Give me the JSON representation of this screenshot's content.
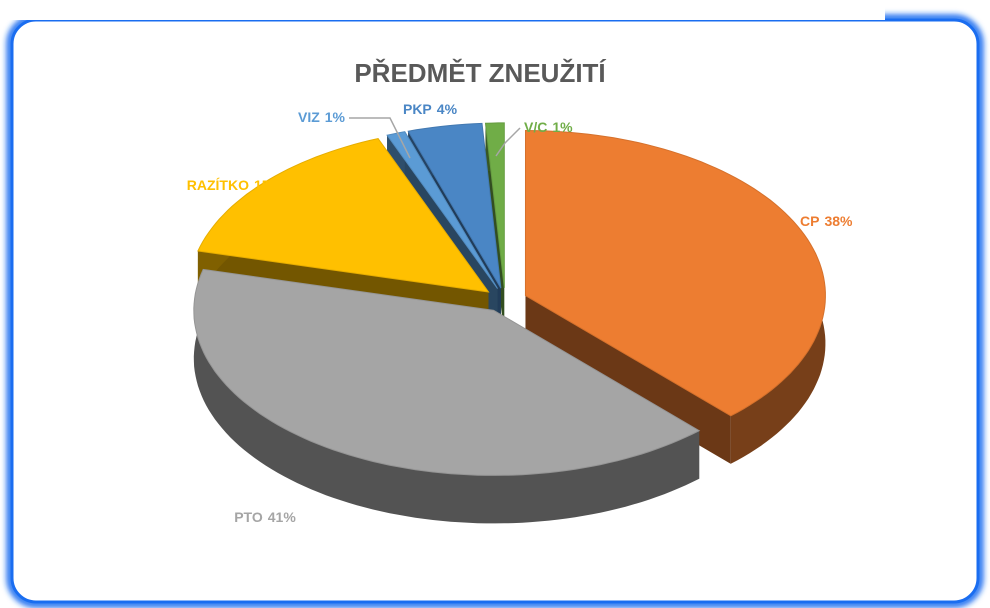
{
  "chart_data": {
    "type": "pie",
    "title": "PŘEDMĚT ZNEUŽITÍ",
    "categories": [
      "CP",
      "PTO",
      "RAZÍTKO",
      "VIZ",
      "PKP",
      "V/C"
    ],
    "values": [
      38,
      41,
      15,
      1,
      4,
      1
    ],
    "value_labels": [
      "38%",
      "41%",
      "15%",
      "1%",
      "4%",
      "1%"
    ],
    "colors": [
      "#ED7D31",
      "#A5A5A5",
      "#FFC000",
      "#5B9BD5",
      "#4A86C5",
      "#70AD47"
    ]
  }
}
